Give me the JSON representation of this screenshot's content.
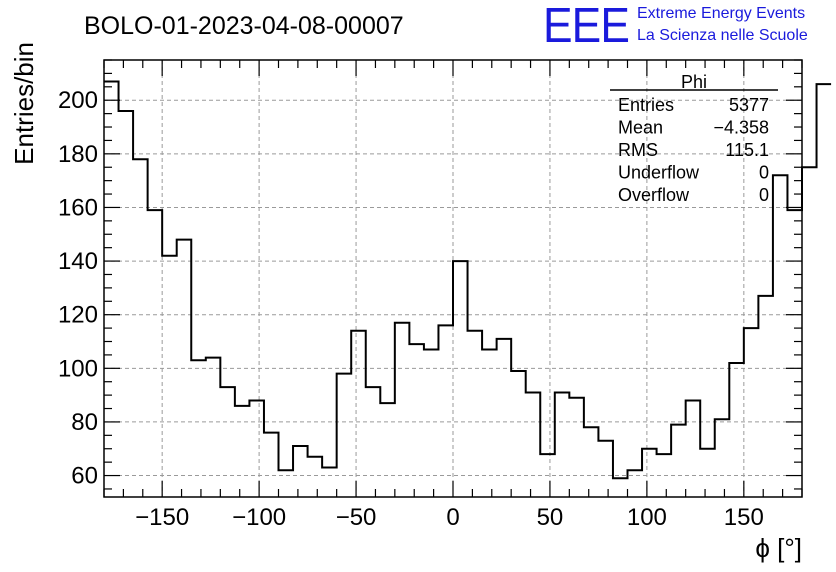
{
  "chart_data": {
    "type": "histogram",
    "title": "BOLO-01-2023-04-08-00007",
    "xlabel": "ϕ [°]",
    "ylabel": "Entries/bin",
    "xlim": [
      -180,
      180
    ],
    "ylim": [
      52,
      215
    ],
    "x_ticks": [
      -150,
      -100,
      -50,
      0,
      50,
      100,
      150
    ],
    "x_tick_labels": [
      "−150",
      "−100",
      "−50",
      "0",
      "50",
      "100",
      "150"
    ],
    "y_ticks": [
      60,
      80,
      100,
      120,
      140,
      160,
      180,
      200
    ],
    "y_tick_labels": [
      "60",
      "80",
      "100",
      "120",
      "140",
      "160",
      "180",
      "200"
    ],
    "grid": true,
    "bin_width": 7.5,
    "bin_start": -180,
    "values": [
      207,
      196,
      178,
      159,
      142,
      148,
      103,
      104,
      93,
      86,
      88,
      76,
      62,
      71,
      67,
      63,
      98,
      114,
      93,
      87,
      117,
      109,
      107,
      116,
      140,
      114,
      107,
      111,
      99,
      91,
      68,
      91,
      89,
      78,
      73,
      59,
      62,
      70,
      68,
      79,
      88,
      70,
      81,
      102,
      115,
      127,
      172,
      159,
      175,
      206
    ],
    "stats": {
      "name": "Phi",
      "rows": [
        {
          "label": "Entries",
          "value": "5377"
        },
        {
          "label": "Mean",
          "value": "−4.358"
        },
        {
          "label": "RMS",
          "value": "115.1"
        },
        {
          "label": "Underflow",
          "value": "0"
        },
        {
          "label": "Overflow",
          "value": "0"
        }
      ]
    }
  },
  "logo": {
    "mark": "EEE",
    "line1": "Extreme Energy Events",
    "line2": "La Scienza nelle Scuole",
    "color": "#1a1adc"
  }
}
